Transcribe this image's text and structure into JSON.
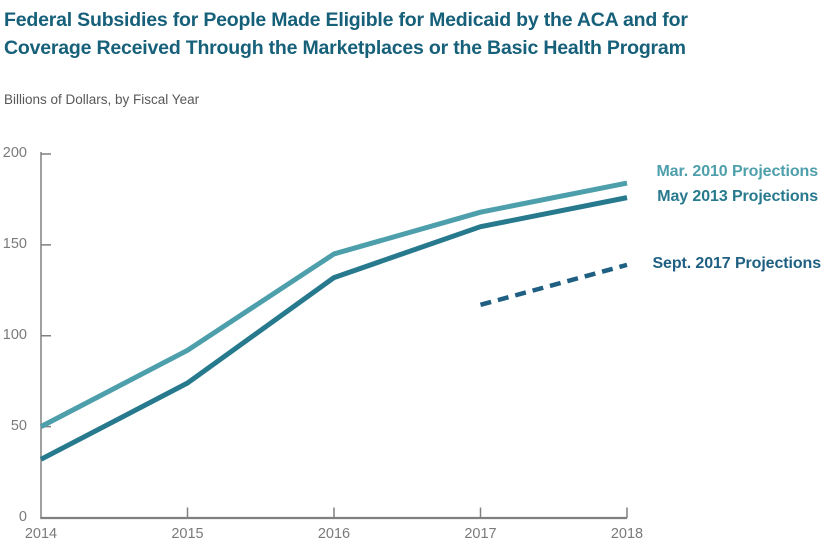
{
  "title": {
    "line1": "Federal Subsidies for People Made Eligible for Medicaid by the ACA and for",
    "line2": "Coverage Received Through the Marketplaces or the Basic Health Program"
  },
  "subtitle": "Billions of Dollars, by Fiscal Year",
  "colors": {
    "title": "#16607a",
    "subtitle": "#58585a",
    "axis": "#808080",
    "tick_label": "#7a7a7a"
  },
  "chart_data": {
    "type": "line",
    "categories": [
      "2014",
      "2015",
      "2016",
      "2017",
      "2018"
    ],
    "title": "Federal Subsidies for People Made Eligible for Medicaid by the ACA and for Coverage Received Through the Marketplaces or the Basic Health Program",
    "xlabel": "Fiscal Year",
    "ylabel": "Billions of Dollars",
    "ylim": [
      0,
      200
    ],
    "y_ticks": [
      0,
      50,
      100,
      150,
      200
    ],
    "y_tick_labels": [
      "0",
      "50",
      "100",
      "150",
      "200"
    ],
    "grid": false,
    "legend_position": "right of line ends",
    "series": [
      {
        "name": "Mar. 2010 Projections",
        "color": "#4d9fab",
        "style": "solid",
        "values": [
          50,
          92,
          145,
          168,
          184
        ]
      },
      {
        "name": "May 2013 Projections",
        "color": "#27798d",
        "style": "solid",
        "values": [
          32,
          74,
          132,
          160,
          176
        ]
      },
      {
        "name": "Sept. 2017 Projections",
        "color": "#1e5f82",
        "style": "dashed",
        "values": [
          null,
          null,
          null,
          117,
          139
        ]
      }
    ]
  }
}
